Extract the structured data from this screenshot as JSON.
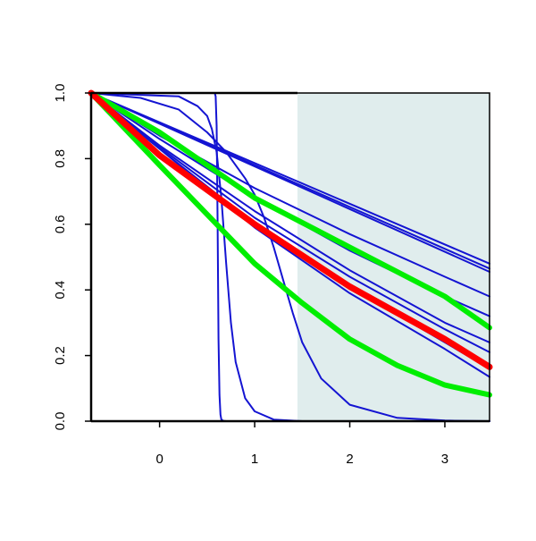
{
  "chart_data": {
    "type": "line",
    "title": "",
    "xlabel": "",
    "ylabel": "",
    "xlim": [
      -0.72,
      3.47
    ],
    "ylim": [
      0,
      1
    ],
    "grid": false,
    "legend": "none",
    "x_ticks": [
      "0",
      "1",
      "2",
      "3"
    ],
    "y_ticks": [
      "0.0",
      "0.2",
      "0.4",
      "0.6",
      "0.8",
      "1.0"
    ],
    "shaded_region": {
      "x_from": 1.45,
      "x_to": 3.47,
      "color": "#e0eded"
    },
    "colors": {
      "blue": "#1414d2",
      "red": "#ff0000",
      "green": "#00ee00",
      "axis": "#000000"
    },
    "series": [
      {
        "color": "#1414d2",
        "width": 2,
        "x": [
          -0.72,
          0.58,
          0.59,
          0.6,
          0.61,
          0.62,
          0.63,
          0.64,
          0.65,
          0.67,
          0.7,
          3.47
        ],
        "y": [
          1.0,
          1.0,
          0.99,
          0.9,
          0.6,
          0.25,
          0.08,
          0.02,
          0.005,
          0.001,
          0.0,
          0.0
        ]
      },
      {
        "color": "#1414d2",
        "width": 2,
        "x": [
          -0.72,
          0.2,
          0.4,
          0.5,
          0.55,
          0.6,
          0.65,
          0.7,
          0.75,
          0.8,
          0.9,
          1.0,
          1.2,
          1.5,
          3.47
        ],
        "y": [
          1.0,
          0.99,
          0.96,
          0.93,
          0.89,
          0.82,
          0.68,
          0.48,
          0.3,
          0.18,
          0.07,
          0.03,
          0.005,
          0.0,
          0.0
        ]
      },
      {
        "color": "#1414d2",
        "width": 2,
        "x": [
          -0.72,
          -0.2,
          0.2,
          0.5,
          0.7,
          0.9,
          1.0,
          1.1,
          1.2,
          1.3,
          1.4,
          1.5,
          1.7,
          2.0,
          2.5,
          3.0,
          3.47
        ],
        "y": [
          1.0,
          0.985,
          0.95,
          0.88,
          0.82,
          0.74,
          0.69,
          0.62,
          0.53,
          0.43,
          0.33,
          0.24,
          0.13,
          0.05,
          0.01,
          0.002,
          0.0
        ]
      },
      {
        "color": "#1414d2",
        "width": 2,
        "x": [
          -0.72,
          3.47
        ],
        "y": [
          1.0,
          0.48
        ]
      },
      {
        "color": "#1414d2",
        "width": 2,
        "x": [
          -0.72,
          3.47
        ],
        "y": [
          1.0,
          0.465
        ]
      },
      {
        "color": "#1414d2",
        "width": 2,
        "x": [
          -0.72,
          3.47
        ],
        "y": [
          1.0,
          0.455
        ]
      },
      {
        "color": "#1414d2",
        "width": 2,
        "x": [
          -0.72,
          0.0,
          1.0,
          2.0,
          3.0,
          3.47
        ],
        "y": [
          1.0,
          0.87,
          0.71,
          0.57,
          0.44,
          0.38
        ]
      },
      {
        "color": "#1414d2",
        "width": 2,
        "x": [
          -0.72,
          0.0,
          1.0,
          2.0,
          3.0,
          3.47
        ],
        "y": [
          1.0,
          0.86,
          0.68,
          0.52,
          0.38,
          0.32
        ]
      },
      {
        "color": "#1414d2",
        "width": 2,
        "x": [
          -0.72,
          0.0,
          1.0,
          2.0,
          3.0,
          3.47
        ],
        "y": [
          1.0,
          0.84,
          0.64,
          0.46,
          0.3,
          0.24
        ]
      },
      {
        "color": "#1414d2",
        "width": 2,
        "x": [
          -0.72,
          0.0,
          1.0,
          2.0,
          3.0,
          3.47
        ],
        "y": [
          1.0,
          0.835,
          0.62,
          0.44,
          0.28,
          0.21
        ]
      },
      {
        "color": "#1414d2",
        "width": 2,
        "x": [
          -0.72,
          0.0,
          1.0,
          2.0,
          3.0,
          3.47
        ],
        "y": [
          1.0,
          0.83,
          0.6,
          0.41,
          0.24,
          0.16
        ]
      },
      {
        "color": "#1414d2",
        "width": 2,
        "x": [
          -0.72,
          0.0,
          1.0,
          2.0,
          3.0,
          3.47
        ],
        "y": [
          1.0,
          0.83,
          0.59,
          0.39,
          0.22,
          0.135
        ]
      },
      {
        "color": "#00ee00",
        "width": 6,
        "x": [
          -0.72,
          0.0,
          1.0,
          2.0,
          3.0,
          3.47
        ],
        "y": [
          1.0,
          0.88,
          0.68,
          0.53,
          0.38,
          0.285
        ]
      },
      {
        "color": "#00ee00",
        "width": 6,
        "x": [
          -0.72,
          0.0,
          0.5,
          1.0,
          1.5,
          2.0,
          2.5,
          3.0,
          3.47
        ],
        "y": [
          1.0,
          0.78,
          0.63,
          0.48,
          0.36,
          0.25,
          0.17,
          0.11,
          0.08
        ]
      },
      {
        "color": "#ff0000",
        "width": 7,
        "x": [
          -0.72,
          0.0,
          1.0,
          2.0,
          3.0,
          3.47
        ],
        "y": [
          1.0,
          0.81,
          0.6,
          0.41,
          0.25,
          0.165
        ]
      }
    ]
  }
}
